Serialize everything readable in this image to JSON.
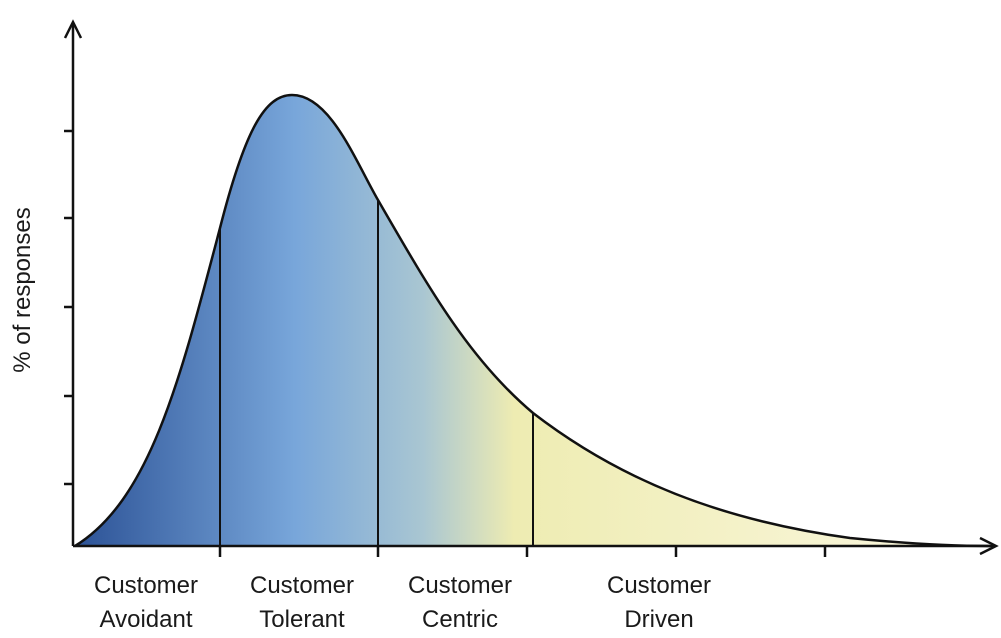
{
  "y_axis": {
    "label": "% of responses"
  },
  "segments": [
    {
      "label": [
        "Customer",
        "Avoidant"
      ]
    },
    {
      "label": [
        "Customer",
        "Tolerant"
      ]
    },
    {
      "label": [
        "Customer",
        "Centric"
      ]
    },
    {
      "label": [
        "Customer",
        "Driven"
      ]
    }
  ]
}
